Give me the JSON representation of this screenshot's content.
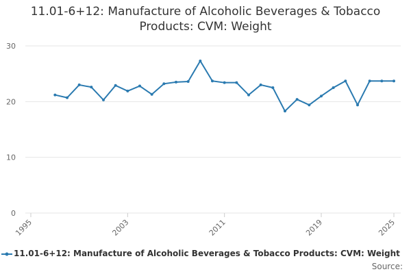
{
  "chart_data": {
    "type": "line",
    "title": "11.01-6+12: Manufacture of Alcoholic Beverages & Tobacco Products: CVM: Weight",
    "x": [
      1997,
      1998,
      1999,
      2000,
      2001,
      2002,
      2003,
      2004,
      2005,
      2006,
      2007,
      2008,
      2009,
      2010,
      2011,
      2012,
      2013,
      2014,
      2015,
      2016,
      2017,
      2018,
      2019,
      2020,
      2021,
      2022,
      2023,
      2024,
      2025
    ],
    "series": [
      {
        "name": "11.01-6+12: Manufacture of Alcoholic Beverages & Tobacco Products: CVM: Weight",
        "color": "#2a7ab0",
        "values": [
          21.2,
          20.7,
          23.0,
          22.6,
          20.3,
          22.9,
          21.9,
          22.8,
          21.3,
          23.2,
          23.5,
          23.6,
          27.3,
          23.7,
          23.4,
          23.4,
          21.2,
          23.0,
          22.5,
          18.3,
          20.4,
          19.4,
          21.0,
          22.5,
          23.7,
          19.4,
          23.7,
          23.7,
          23.7
        ]
      }
    ],
    "xlim": [
      1995,
      2025
    ],
    "xticks": [
      1995,
      2003,
      2011,
      2019,
      2025
    ],
    "ylim": [
      0,
      30
    ],
    "yticks": [
      0,
      10,
      20,
      30
    ],
    "grid": true,
    "source": "Source:"
  }
}
